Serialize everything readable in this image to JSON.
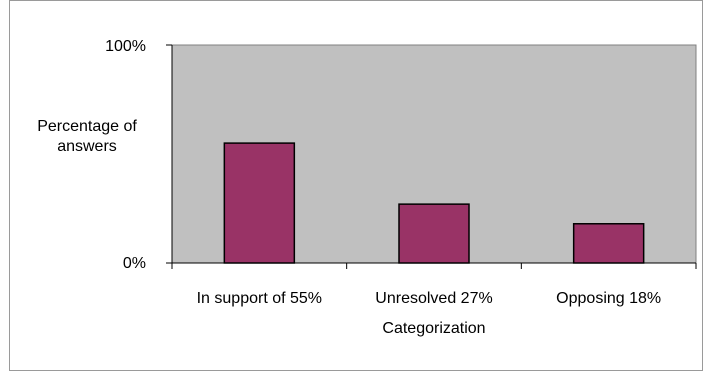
{
  "chart_data": {
    "type": "bar",
    "categories": [
      "In support of 55%",
      "Unresolved 27%",
      "Opposing 18%"
    ],
    "values": [
      55,
      27,
      18
    ],
    "title": "",
    "xlabel": "Categorization",
    "ylabel": "Percentage of answers",
    "ylabel_lines": [
      "Percentage of",
      "answers"
    ],
    "ylim": [
      0,
      100
    ],
    "yticks": [
      "0%",
      "100%"
    ],
    "grid": false,
    "legend": "none",
    "colors": {
      "bar_fill": "#993366",
      "plot_background": "#c0c0c0"
    }
  }
}
